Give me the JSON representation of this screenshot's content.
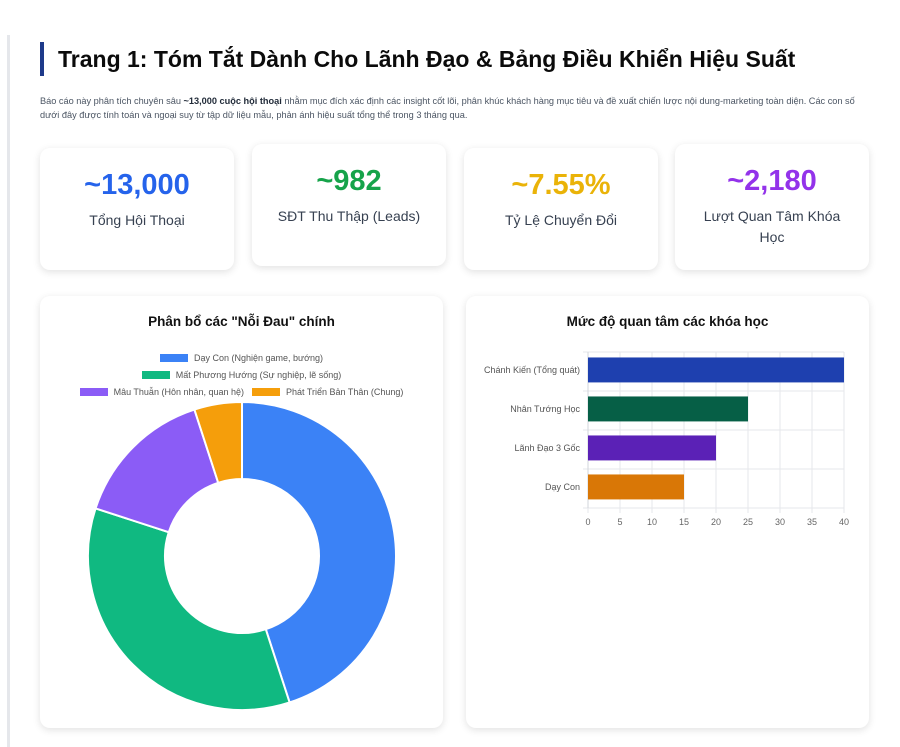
{
  "header": {
    "title": "Trang 1: Tóm Tắt Dành Cho Lãnh Đạo & Bảng Điều Khiển Hiệu Suất",
    "intro_before": "Báo cáo này phân tích chuyên sâu ",
    "intro_bold": "~13,000 cuộc hội thoại",
    "intro_after": " nhằm mục đích xác định các insight cốt lõi, phân khúc khách hàng mục tiêu và đề xuất chiến lược nội dung-marketing toàn diện. Các con số dưới đây được tính toán và ngoại suy từ tập dữ liệu mẫu, phản ánh hiệu suất tổng thể trong 3 tháng qua."
  },
  "kpis": [
    {
      "value": "~13,000",
      "label": "Tổng Hội Thoại",
      "color": "#2563eb"
    },
    {
      "value": "~982",
      "label": "SĐT Thu Thập (Leads)",
      "color": "#16a34a"
    },
    {
      "value": "~7.55%",
      "label": "Tỷ Lệ Chuyển Đổi",
      "color": "#eab308"
    },
    {
      "value": "~2,180",
      "label": "Lượt Quan Tâm Khóa Học",
      "color": "#9333ea"
    }
  ],
  "chart_data": [
    {
      "type": "pie",
      "title": "Phân bổ các \"Nỗi Đau\" chính",
      "legend": "top",
      "labels": [
        "Dạy Con (Nghiện game, bướng)",
        "Mất Phương Hướng (Sự nghiệp, lẽ sống)",
        "Mâu Thuẫn (Hôn nhân, quan hệ)",
        "Phát Triển Bản Thân (Chung)"
      ],
      "values": [
        45,
        35,
        15,
        5
      ],
      "colors": [
        "#3b82f6",
        "#10b981",
        "#8b5cf6",
        "#f59e0b"
      ]
    },
    {
      "type": "bar",
      "orientation": "horizontal",
      "title": "Mức độ quan tâm các khóa học",
      "categories": [
        "Chánh Kiến (Tổng quát)",
        "Nhân Tướng Học",
        "Lãnh Đạo 3 Gốc",
        "Dạy Con"
      ],
      "values": [
        40,
        25,
        20,
        15
      ],
      "colors": [
        "#1e40af",
        "#065f46",
        "#5b21b6",
        "#d97706"
      ],
      "xlim": [
        0,
        40
      ],
      "xticks": [
        "0",
        "5",
        "10",
        "15",
        "20",
        "25",
        "30",
        "35",
        "40"
      ],
      "grid": true
    }
  ]
}
